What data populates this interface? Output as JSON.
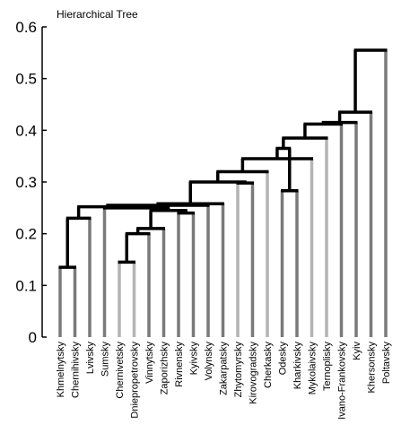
{
  "chart_data": {
    "type": "dendrogram",
    "title": "Hierarchical Tree",
    "xlabel": "",
    "ylabel": "",
    "ylim": [
      0,
      0.6
    ],
    "yticks": [
      0,
      0.1,
      0.2,
      0.3,
      0.4,
      0.5,
      0.6
    ],
    "ytick_labels": [
      "0",
      "0.1",
      "0.2",
      "0.3",
      "0.4",
      "0.5",
      "0.6"
    ],
    "grid": false,
    "leaves": [
      "Khmelnytsky",
      "Chernihivsky",
      "Lvivsky",
      "Sumsky",
      "Chernivetsky",
      "Dniepropetrovsky",
      "Vinnytsky",
      "Zaporizhsky",
      "Rivnensky",
      "Kyivsky",
      "Volynsky",
      "Zakarpatsky",
      "Zhytomyrsky",
      "Kirovogradsky",
      "Cherkasky",
      "Odesky",
      "Kharkivsky",
      "Mykolaivsky",
      "Ternoplisky",
      "Ivano-Frankovsky",
      "Kyiv",
      "Khersonsky",
      "Poltavsky"
    ],
    "merges": [
      {
        "left": "L0",
        "right": "L1",
        "height": 0.135
      },
      {
        "left": "L4",
        "right": "L5",
        "height": 0.145
      },
      {
        "left": "N1",
        "right": "L6",
        "height": 0.2
      },
      {
        "left": "N2",
        "right": "L7",
        "height": 0.21
      },
      {
        "left": "N0",
        "right": "L2",
        "height": 0.23
      },
      {
        "left": "L8",
        "right": "L9",
        "height": 0.24
      },
      {
        "left": "N3",
        "right": "N5",
        "height": 0.245
      },
      {
        "left": "L3",
        "right": "N6",
        "height": 0.25
      },
      {
        "left": "N4",
        "right": "N7",
        "height": 0.252
      },
      {
        "left": "N8",
        "right": "L10",
        "height": 0.255
      },
      {
        "left": "N9",
        "right": "L11",
        "height": 0.258
      },
      {
        "left": "L12",
        "right": "L13",
        "height": 0.298
      },
      {
        "left": "N10",
        "right": "N11",
        "height": 0.3
      },
      {
        "left": "N12",
        "right": "L14",
        "height": 0.32
      },
      {
        "left": "L15",
        "right": "L16",
        "height": 0.283
      },
      {
        "left": "N13",
        "right": "L17",
        "height": 0.345
      },
      {
        "left": "N15",
        "right": "N14",
        "height": 0.365
      },
      {
        "left": "N16",
        "right": "L18",
        "height": 0.385
      },
      {
        "left": "N17",
        "right": "L19",
        "height": 0.412
      },
      {
        "left": "N18",
        "right": "L20",
        "height": 0.415
      },
      {
        "left": "N19",
        "right": "L21",
        "height": 0.435
      },
      {
        "left": "N20",
        "right": "L22",
        "height": 0.555
      }
    ],
    "colors": {
      "link": "#000000",
      "leaf_dark": "#7a7a7a",
      "leaf_light": "#b4b4b4",
      "axis": "#000000"
    },
    "light_leaves": [
      4,
      5,
      12,
      14,
      17,
      18
    ]
  }
}
